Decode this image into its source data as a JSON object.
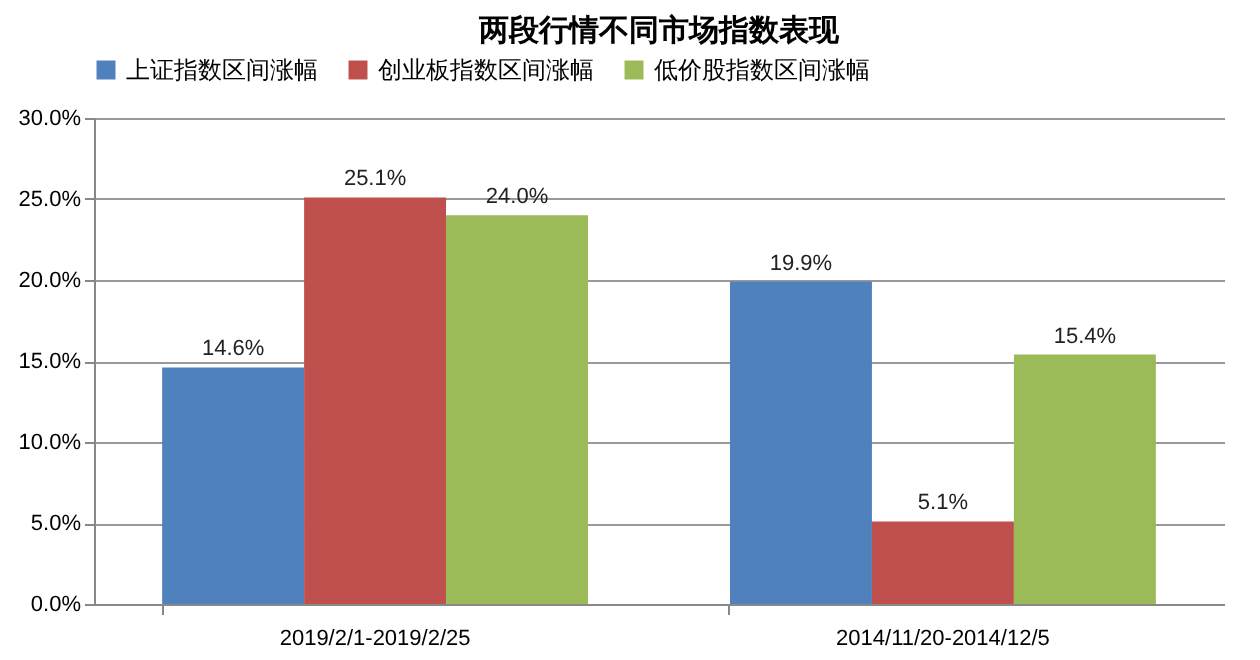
{
  "chart_data": {
    "type": "bar",
    "title": "两段行情不同市场指数表现",
    "categories": [
      "2019/2/1-2019/2/25",
      "2014/11/20-2014/12/5"
    ],
    "series": [
      {
        "name": "上证指数区间涨幅",
        "color": "#4f81bd",
        "values": [
          14.6,
          19.9
        ],
        "value_labels": [
          "14.6%",
          "19.9%"
        ]
      },
      {
        "name": "创业板指数区间涨幅",
        "color": "#c0504d",
        "values": [
          25.1,
          5.1
        ],
        "value_labels": [
          "25.1%",
          "5.1%"
        ]
      },
      {
        "name": "低价股指数区间涨幅",
        "color": "#9bbb59",
        "values": [
          24.0,
          15.4
        ],
        "value_labels": [
          "24.0%",
          "15.4%"
        ]
      }
    ],
    "ylim": [
      0,
      30
    ],
    "yticks": [
      {
        "value": 0,
        "label": "0.0%"
      },
      {
        "value": 5,
        "label": "5.0%"
      },
      {
        "value": 10,
        "label": "10.0%"
      },
      {
        "value": 15,
        "label": "15.0%"
      },
      {
        "value": 20,
        "label": "20.0%"
      },
      {
        "value": 25,
        "label": "25.0%"
      },
      {
        "value": 30,
        "label": "30.0%"
      }
    ],
    "grid": "y",
    "legend": "top"
  }
}
